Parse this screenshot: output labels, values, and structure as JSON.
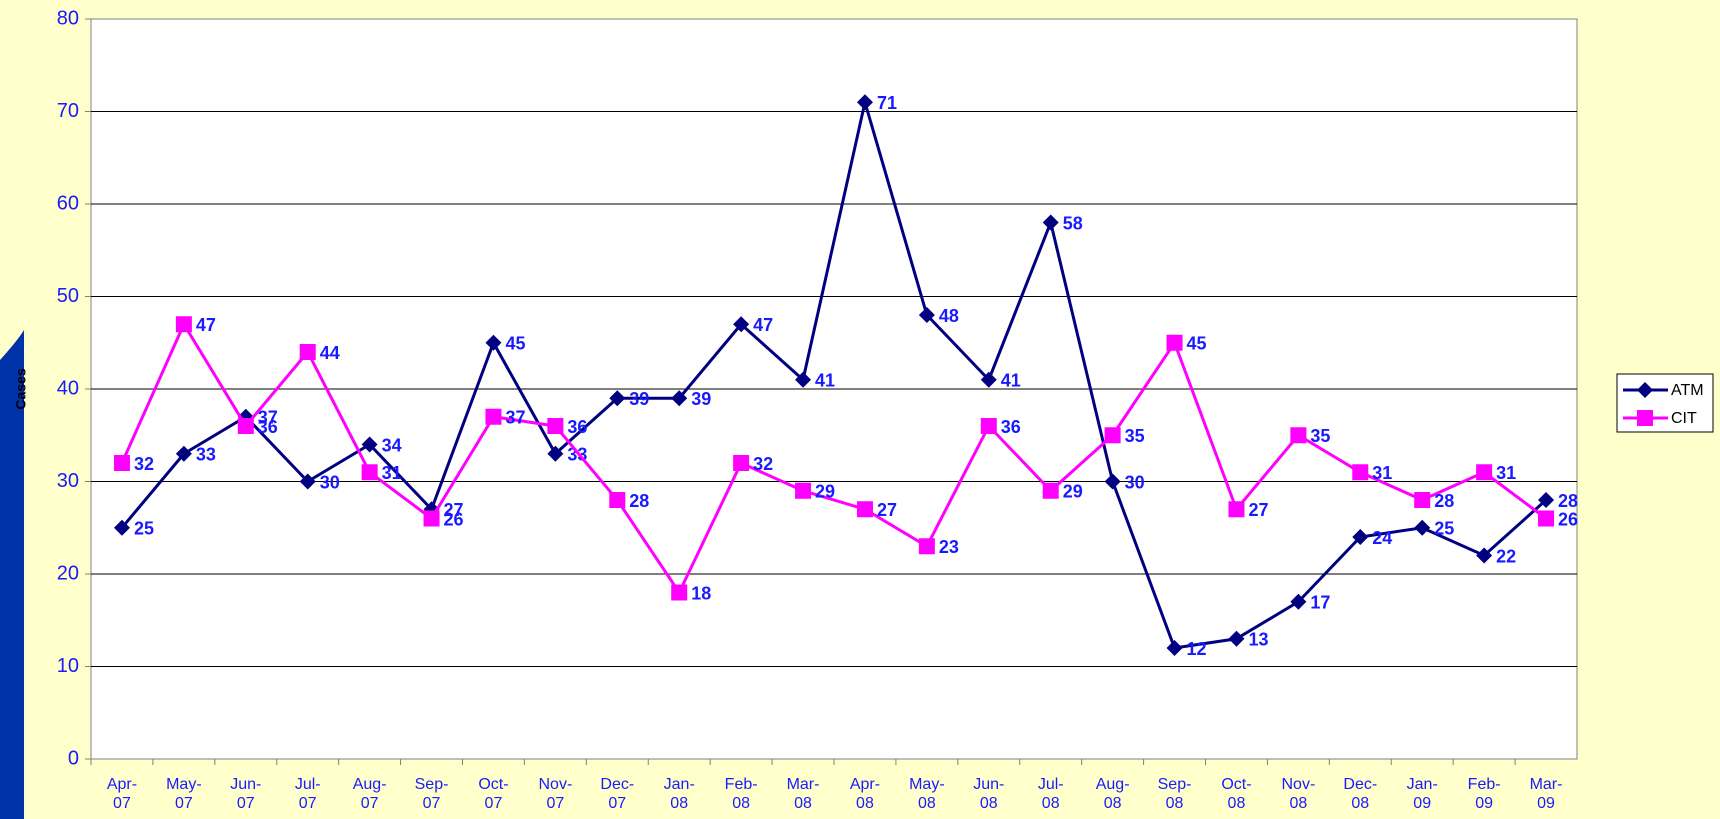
{
  "chart_data": {
    "type": "line",
    "ylabel": "Cases",
    "categories": [
      "Apr-07",
      "May-07",
      "Jun-07",
      "Jul-07",
      "Aug-07",
      "Sep-07",
      "Oct-07",
      "Nov-07",
      "Dec-07",
      "Jan-08",
      "Feb-08",
      "Mar-08",
      "Apr-08",
      "May-08",
      "Jun-08",
      "Jul-08",
      "Aug-08",
      "Sep-08",
      "Oct-08",
      "Nov-08",
      "Dec-08",
      "Jan-09",
      "Feb-09",
      "Mar-09"
    ],
    "series": [
      {
        "name": "ATM",
        "color": "#000080",
        "marker": "diamond",
        "values": [
          25,
          33,
          37,
          30,
          34,
          27,
          45,
          33,
          39,
          39,
          47,
          41,
          71,
          48,
          41,
          58,
          30,
          12,
          13,
          17,
          24,
          25,
          22,
          28
        ]
      },
      {
        "name": "CIT",
        "color": "#ff00ff",
        "marker": "square",
        "values": [
          32,
          47,
          36,
          44,
          31,
          26,
          37,
          36,
          28,
          18,
          32,
          29,
          27,
          23,
          36,
          29,
          35,
          45,
          27,
          35,
          31,
          28,
          31,
          26
        ]
      }
    ],
    "ylim": [
      0,
      80
    ],
    "yticks": [
      0,
      10,
      20,
      30,
      40,
      50,
      60,
      70,
      80
    ],
    "grid": true,
    "legend": "right"
  }
}
